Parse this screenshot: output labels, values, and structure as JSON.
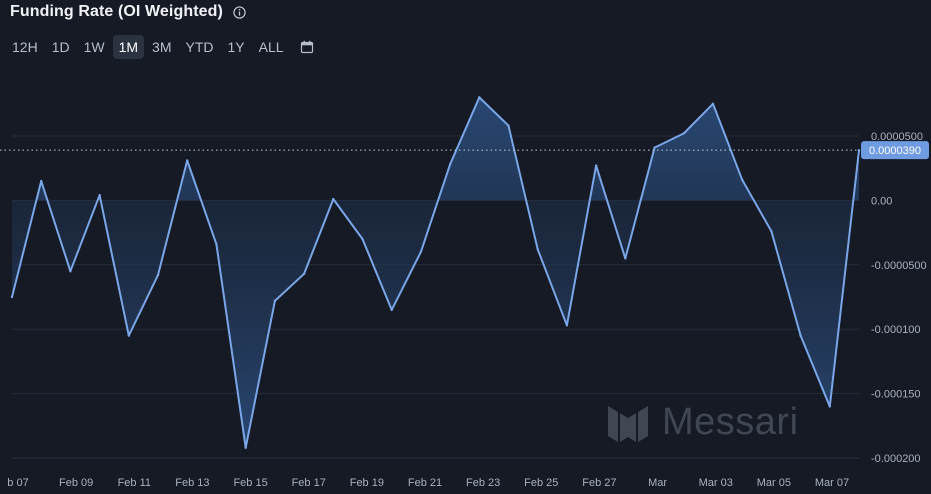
{
  "header": {
    "title": "Funding Rate (OI Weighted)"
  },
  "ranges": [
    {
      "label": "12H",
      "active": false
    },
    {
      "label": "1D",
      "active": false
    },
    {
      "label": "1W",
      "active": false
    },
    {
      "label": "1M",
      "active": true
    },
    {
      "label": "3M",
      "active": false
    },
    {
      "label": "YTD",
      "active": false
    },
    {
      "label": "1Y",
      "active": false
    },
    {
      "label": "ALL",
      "active": false
    }
  ],
  "watermark": {
    "text": "Messari"
  },
  "chart_data": {
    "type": "area",
    "title": "Funding Rate (OI Weighted)",
    "xlabel": "",
    "ylabel": "",
    "grid": true,
    "ylim": [
      -0.0002,
      5e-05
    ],
    "y_ticks": [
      {
        "value": 5e-05,
        "label": "0.0000500"
      },
      {
        "value": 0,
        "label": "0.00"
      },
      {
        "value": -5e-05,
        "label": "-0.0000500"
      },
      {
        "value": -0.0001,
        "label": "-0.000100"
      },
      {
        "value": -0.00015,
        "label": "-0.000150"
      },
      {
        "value": -0.0002,
        "label": "-0.000200"
      }
    ],
    "x_ticks": [
      "b 07",
      "Feb 09",
      "Feb 11",
      "Feb 13",
      "Feb 15",
      "Feb 17",
      "Feb 19",
      "Feb 21",
      "Feb 23",
      "Feb 25",
      "Feb 27",
      "Mar",
      "Mar 03",
      "Mar 05",
      "Mar 07"
    ],
    "current_value": 3.9e-05,
    "current_label": "0.0000390",
    "series": [
      {
        "values": [
          -7.5e-05,
          1.5e-05,
          -5.5e-05,
          4e-06,
          -0.000105,
          -5.8e-05,
          3.1e-05,
          -3.4e-05,
          -0.000192,
          -7.8e-05,
          -5.7e-05,
          1e-06,
          -3e-05,
          -8.5e-05,
          -4e-05,
          2.8e-05,
          8e-05,
          5.8e-05,
          -3.8e-05,
          -9.7e-05,
          2.7e-05,
          -4.5e-05,
          4.1e-05,
          5.2e-05,
          7.5e-05,
          1.6e-05,
          -2.4e-05,
          -0.000105,
          -0.00016,
          3.9e-05
        ]
      }
    ],
    "colors": {
      "line": "#7aa6e8",
      "fill_top": "#2a4a78",
      "fill_bottom": "#1a2538",
      "grid": "#252c3a",
      "tick": "#aab1be",
      "badge": "#6f9be0"
    }
  }
}
